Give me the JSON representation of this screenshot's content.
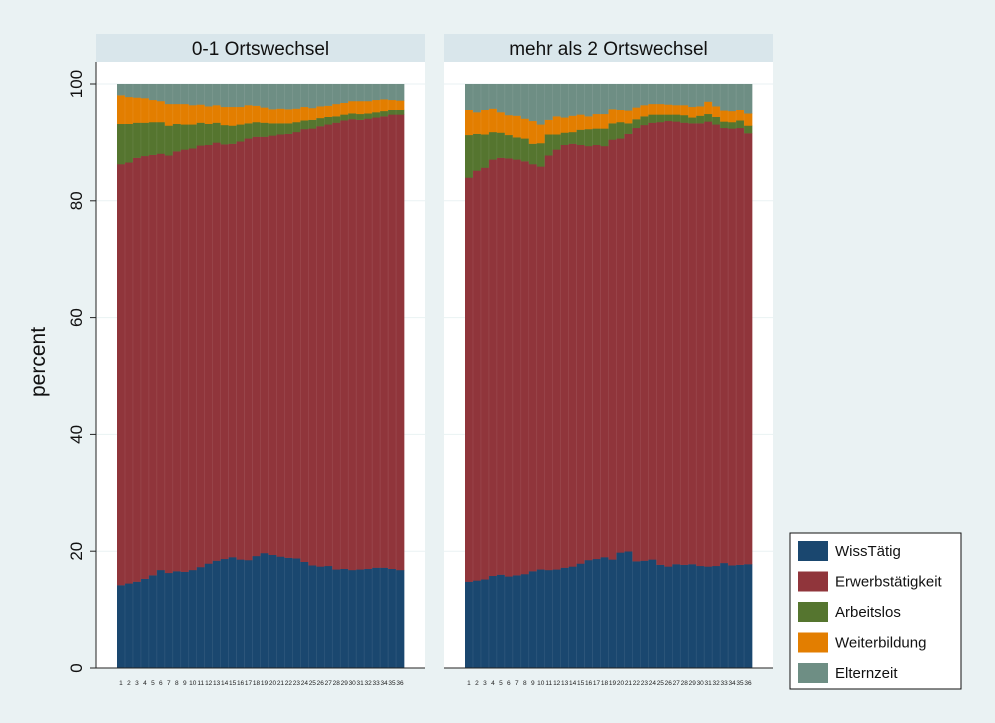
{
  "chart_data": {
    "type": "bar",
    "stacked": true,
    "ylabel": "percent",
    "ylim": [
      0,
      100
    ],
    "yticks": [
      0,
      20,
      40,
      60,
      80,
      100
    ],
    "grid": true,
    "legend_position": "bottom-right",
    "categories": [
      "1",
      "2",
      "3",
      "4",
      "5",
      "6",
      "7",
      "8",
      "9",
      "10",
      "11",
      "12",
      "13",
      "14",
      "15",
      "16",
      "17",
      "18",
      "19",
      "20",
      "21",
      "22",
      "23",
      "24",
      "25",
      "26",
      "27",
      "28",
      "29",
      "30",
      "31",
      "32",
      "33",
      "34",
      "35",
      "36"
    ],
    "series_meta": [
      {
        "name": "WissTätig",
        "color": "#1a476f"
      },
      {
        "name": "Erwerbstätigkeit",
        "color": "#90353b"
      },
      {
        "name": "Arbeitslos",
        "color": "#55752f"
      },
      {
        "name": "Weiterbildung",
        "color": "#e37e00"
      },
      {
        "name": "Elternzeit",
        "color": "#6e8e84"
      }
    ],
    "panels": [
      {
        "title": "0-1 Ortswechsel",
        "series": [
          {
            "name": "WissTätig",
            "values": [
              14.2,
              14.5,
              14.8,
              15.3,
              15.9,
              16.8,
              16.3,
              16.6,
              16.5,
              16.8,
              17.3,
              17.9,
              18.4,
              18.7,
              19.0,
              18.6,
              18.5,
              19.2,
              19.7,
              19.4,
              19.1,
              18.9,
              18.8,
              18.2,
              17.6,
              17.4,
              17.5,
              16.9,
              17.0,
              16.8,
              16.9,
              17.0,
              17.2,
              17.2,
              17.0,
              16.8
            ]
          },
          {
            "name": "Erwerbstätigkeit",
            "values": [
              72.1,
              72.1,
              72.6,
              72.4,
              72.0,
              71.3,
              71.5,
              71.9,
              72.3,
              72.2,
              72.2,
              71.7,
              71.6,
              71.0,
              70.8,
              71.6,
              72.2,
              71.8,
              71.3,
              71.8,
              72.3,
              72.6,
              73.0,
              74.1,
              74.8,
              75.4,
              75.6,
              76.5,
              76.8,
              77.2,
              77.0,
              77.1,
              77.1,
              77.3,
              77.8,
              78.0
            ]
          },
          {
            "name": "Arbeitslos",
            "values": [
              6.9,
              6.6,
              6.0,
              5.7,
              5.6,
              5.4,
              5.1,
              4.7,
              4.3,
              4.1,
              3.9,
              3.6,
              3.4,
              3.3,
              3.1,
              2.9,
              2.6,
              2.5,
              2.4,
              2.1,
              1.9,
              1.8,
              1.7,
              1.5,
              1.5,
              1.4,
              1.3,
              1.1,
              1.0,
              1.0,
              1.0,
              0.9,
              0.9,
              0.9,
              0.8,
              0.8
            ]
          },
          {
            "name": "Weiterbildung",
            "values": [
              4.9,
              4.6,
              4.3,
              4.2,
              3.8,
              3.6,
              3.7,
              3.4,
              3.5,
              3.3,
              3.1,
              3.0,
              3.0,
              3.1,
              3.2,
              3.0,
              3.1,
              2.8,
              2.6,
              2.4,
              2.5,
              2.4,
              2.3,
              2.3,
              2.0,
              2.0,
              1.9,
              2.1,
              2.0,
              2.1,
              2.2,
              2.1,
              2.1,
              2.0,
              1.7,
              1.6
            ]
          },
          {
            "name": "Elternzeit",
            "values": [
              1.9,
              2.2,
              2.3,
              2.4,
              2.7,
              2.9,
              3.4,
              3.4,
              3.4,
              3.6,
              3.5,
              3.8,
              3.6,
              3.9,
              3.9,
              3.9,
              3.6,
              3.7,
              4.0,
              4.3,
              4.2,
              4.3,
              4.2,
              3.9,
              4.1,
              3.8,
              3.7,
              3.4,
              3.2,
              2.9,
              2.9,
              2.9,
              2.7,
              2.6,
              2.7,
              2.8
            ]
          }
        ]
      },
      {
        "title": "mehr als 2 Ortswechsel",
        "series": [
          {
            "name": "WissTätig",
            "values": [
              14.8,
              15.0,
              15.2,
              15.8,
              16.0,
              15.7,
              15.9,
              16.1,
              16.6,
              16.9,
              16.8,
              16.9,
              17.2,
              17.4,
              17.9,
              18.5,
              18.7,
              19.0,
              18.6,
              19.8,
              20.0,
              18.3,
              18.4,
              18.6,
              17.7,
              17.4,
              17.8,
              17.7,
              17.8,
              17.5,
              17.4,
              17.5,
              18.0,
              17.6,
              17.7,
              17.8
            ]
          },
          {
            "name": "Erwerbstätigkeit",
            "values": [
              69.2,
              70.2,
              70.5,
              71.3,
              71.4,
              71.6,
              71.2,
              70.7,
              69.7,
              69.0,
              71.0,
              71.9,
              72.4,
              72.4,
              71.7,
              70.9,
              70.9,
              70.4,
              71.9,
              70.9,
              71.5,
              74.2,
              74.6,
              74.8,
              75.8,
              76.3,
              75.8,
              75.7,
              75.5,
              75.8,
              76.2,
              75.6,
              74.5,
              74.8,
              74.8,
              73.8
            ]
          },
          {
            "name": "Arbeitslos",
            "values": [
              7.3,
              6.3,
              5.7,
              4.7,
              4.3,
              4.0,
              3.8,
              3.9,
              3.5,
              4.0,
              3.6,
              2.6,
              2.1,
              2.0,
              2.6,
              2.9,
              2.8,
              3.0,
              2.8,
              2.8,
              1.8,
              1.5,
              1.5,
              1.4,
              1.3,
              1.1,
              1.2,
              1.3,
              1.0,
              1.3,
              1.3,
              1.3,
              1.1,
              1.1,
              1.3,
              1.3
            ]
          },
          {
            "name": "Weiterbildung",
            "values": [
              4.3,
              3.7,
              4.2,
              4.0,
              3.5,
              3.4,
              3.7,
              3.4,
              3.9,
              3.2,
              2.5,
              3.1,
              2.6,
              2.8,
              2.6,
              2.2,
              2.5,
              2.5,
              2.4,
              2.1,
              2.2,
              2.0,
              1.9,
              1.8,
              1.8,
              1.7,
              1.6,
              1.7,
              1.8,
              1.6,
              2.1,
              1.8,
              1.9,
              1.9,
              1.8,
              2.1
            ]
          },
          {
            "name": "Elternzeit",
            "values": [
              4.4,
              4.8,
              4.4,
              4.2,
              4.8,
              5.3,
              5.4,
              5.9,
              6.3,
              6.9,
              6.1,
              5.5,
              5.7,
              5.4,
              5.2,
              5.5,
              5.1,
              5.1,
              4.3,
              4.4,
              4.5,
              4.0,
              3.6,
              3.4,
              3.4,
              3.5,
              3.6,
              3.6,
              3.9,
              3.8,
              3.0,
              3.8,
              4.5,
              4.6,
              4.4,
              5.0
            ]
          }
        ]
      }
    ]
  }
}
